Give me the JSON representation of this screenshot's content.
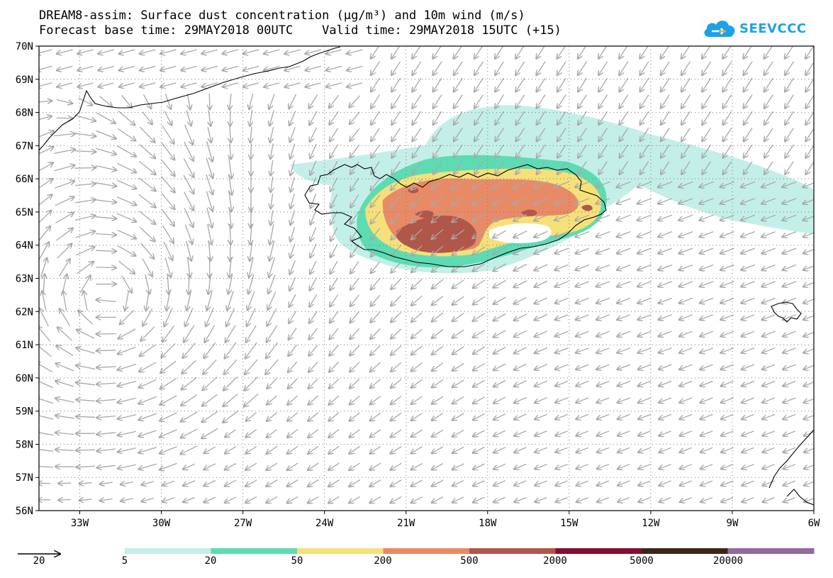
{
  "header": {
    "title_line1": "DREAM8-assim: Surface dust concentration (µg/m³) and 10m wind (m/s)",
    "title_line2": "Forecast base time: 29MAY2018 00UTC    Valid time: 29MAY2018 15UTC (+15)"
  },
  "logo": {
    "text": "SEEVCCC",
    "icon": "cloud-icon",
    "color": "#1aa3e8"
  },
  "map": {
    "lon_range": [
      -34.5,
      -6.0
    ],
    "lat_range": [
      56.0,
      70.0
    ],
    "x_ticks": [
      "33W",
      "30W",
      "27W",
      "24W",
      "21W",
      "18W",
      "15W",
      "12W",
      "9W",
      "6W"
    ],
    "y_ticks": [
      "70N",
      "69N",
      "68N",
      "67N",
      "66N",
      "65N",
      "64N",
      "63N",
      "62N",
      "61N",
      "60N",
      "59N",
      "58N",
      "57N",
      "56N"
    ],
    "grid": "dotted",
    "wind_arrow_color": "#a8a8a8",
    "coast_color": "#000000"
  },
  "legend": {
    "vector_reference": "20",
    "levels": [
      "5",
      "20",
      "50",
      "200",
      "500",
      "2000",
      "5000",
      "20000"
    ],
    "colors": [
      "#c3efe8",
      "#5ddcb4",
      "#f5e07a",
      "#e98a66",
      "#b1574a",
      "#820e32",
      "#3e2417",
      "#9269a1"
    ]
  }
}
